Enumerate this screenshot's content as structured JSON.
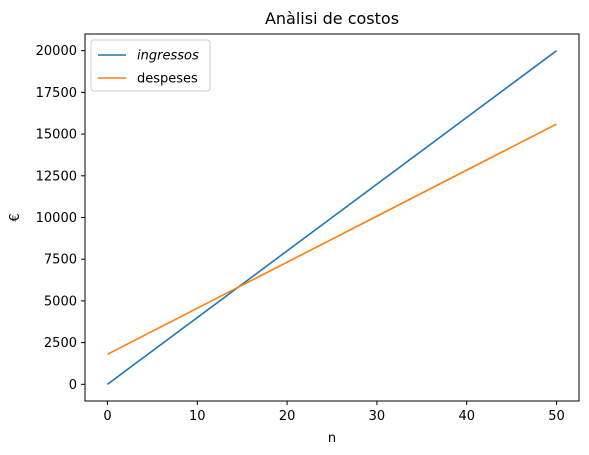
{
  "chart_data": {
    "type": "line",
    "title": "Anàlisi de costos",
    "xlabel": "n",
    "ylabel": "€",
    "xlim": [
      -2.5,
      52.5
    ],
    "ylim": [
      -1000,
      21000
    ],
    "xticks": [
      0,
      10,
      20,
      30,
      40,
      50
    ],
    "yticks": [
      0,
      2500,
      5000,
      7500,
      10000,
      12500,
      15000,
      17500,
      20000
    ],
    "grid": false,
    "legend_position": "top-left",
    "series": [
      {
        "name": "ingressos",
        "italic": true,
        "color": "#1f77b4",
        "x": [
          0,
          50
        ],
        "y": [
          0,
          20000
        ]
      },
      {
        "name": "despeses",
        "italic": false,
        "color": "#ff7f0e",
        "x": [
          0,
          50
        ],
        "y": [
          1800,
          15600
        ]
      }
    ]
  }
}
